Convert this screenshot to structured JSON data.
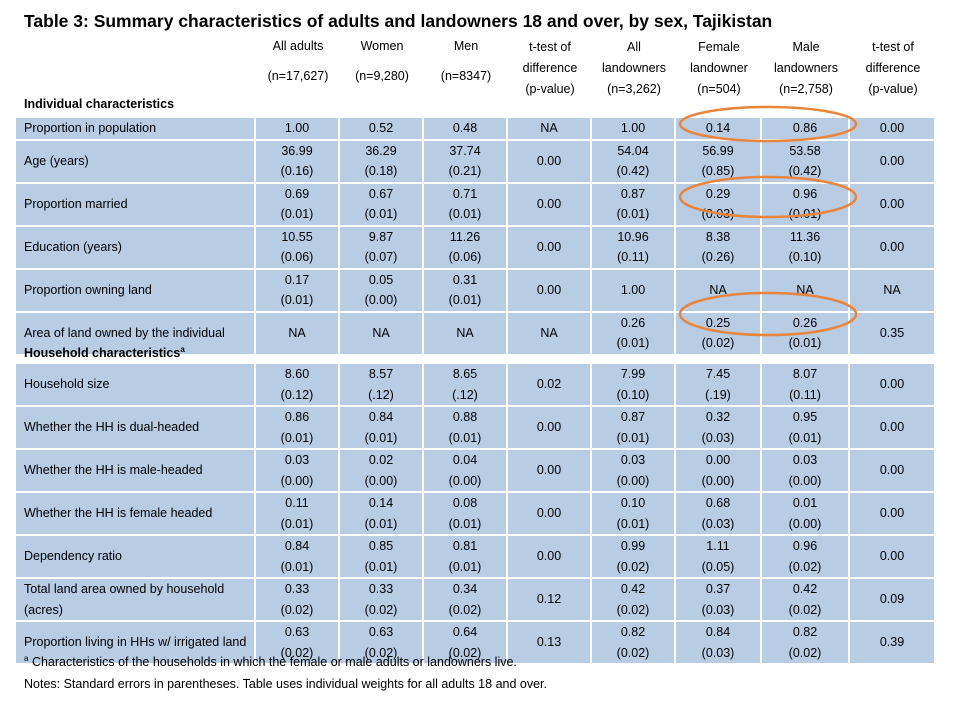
{
  "title": "Table 3:  Summary characteristics of adults and landowners 18 and over, by sex, Tajikistan",
  "columns": [
    {
      "lines": [
        "All adults",
        "(n=17,627)"
      ]
    },
    {
      "lines": [
        "Women",
        "(n=9,280)"
      ]
    },
    {
      "lines": [
        "Men",
        "(n=8347)"
      ]
    },
    {
      "lines": [
        "t-test of",
        "difference",
        "(p-value)"
      ]
    },
    {
      "lines": [
        "All",
        "landowners",
        "(n=3,262)"
      ]
    },
    {
      "lines": [
        "Female",
        "landowner",
        "(n=504)"
      ]
    },
    {
      "lines": [
        "Male",
        "landowners",
        "(n=2,758)"
      ]
    },
    {
      "lines": [
        "t-test of",
        "difference",
        "(p-value)"
      ]
    }
  ],
  "sections": {
    "individual": "Individual characteristics",
    "household": "Household characteristics",
    "household_sup": "a"
  },
  "individual_rows": [
    {
      "label": "Proportion in population",
      "cells": [
        [
          "1.00"
        ],
        [
          "0.52"
        ],
        [
          "0.48"
        ],
        [
          "NA"
        ],
        [
          "1.00"
        ],
        [
          "0.14"
        ],
        [
          "0.86"
        ],
        [
          "0.00"
        ]
      ]
    },
    {
      "label": "Age (years)",
      "cells": [
        [
          "36.99",
          "(0.16)"
        ],
        [
          "36.29",
          "(0.18)"
        ],
        [
          "37.74",
          "(0.21)"
        ],
        [
          "0.00"
        ],
        [
          "54.04",
          "(0.42)"
        ],
        [
          "56.99",
          "(0.85)"
        ],
        [
          "53.58",
          "(0.42)"
        ],
        [
          "0.00"
        ]
      ]
    },
    {
      "label": "Proportion married",
      "cells": [
        [
          "0.69",
          "(0.01)"
        ],
        [
          "0.67",
          "(0.01)"
        ],
        [
          "0.71",
          "(0.01)"
        ],
        [
          "0.00"
        ],
        [
          "0.87",
          "(0.01)"
        ],
        [
          "0.29",
          "(0.03)"
        ],
        [
          "0.96",
          "(0.01)"
        ],
        [
          "0.00"
        ]
      ]
    },
    {
      "label": "Education (years)",
      "cells": [
        [
          "10.55",
          "(0.06)"
        ],
        [
          "9.87",
          "(0.07)"
        ],
        [
          "11.26",
          "(0.06)"
        ],
        [
          "0.00"
        ],
        [
          "10.96",
          "(0.11)"
        ],
        [
          "8.38",
          "(0.26)"
        ],
        [
          "11.36",
          "(0.10)"
        ],
        [
          "0.00"
        ]
      ]
    },
    {
      "label": "Proportion owning land",
      "cells": [
        [
          "0.17",
          "(0.01)"
        ],
        [
          "0.05",
          "(0.00)"
        ],
        [
          "0.31",
          "(0.01)"
        ],
        [
          "0.00"
        ],
        [
          "1.00"
        ],
        [
          "NA"
        ],
        [
          "NA"
        ],
        [
          "NA"
        ]
      ]
    },
    {
      "label": "Area of land owned by the individual",
      "cells": [
        [
          "NA"
        ],
        [
          "NA"
        ],
        [
          "NA"
        ],
        [
          "NA"
        ],
        [
          "0.26",
          "(0.01)"
        ],
        [
          "0.25",
          "(0.02)"
        ],
        [
          "0.26",
          "(0.01)"
        ],
        [
          "0.35"
        ]
      ]
    }
  ],
  "household_rows": [
    {
      "label": "Household size",
      "cells": [
        [
          "8.60",
          "(0.12)"
        ],
        [
          "8.57",
          "(.12)"
        ],
        [
          "8.65",
          "(.12)"
        ],
        [
          "0.02"
        ],
        [
          "7.99",
          "(0.10)"
        ],
        [
          "7.45",
          "(.19)"
        ],
        [
          "8.07",
          "(0.11)"
        ],
        [
          "0.00"
        ]
      ]
    },
    {
      "label": "Whether the HH is dual-headed",
      "cells": [
        [
          "0.86",
          "(0.01)"
        ],
        [
          "0.84",
          "(0.01)"
        ],
        [
          "0.88",
          "(0.01)"
        ],
        [
          "0.00"
        ],
        [
          "0.87",
          "(0.01)"
        ],
        [
          "0.32",
          "(0.03)"
        ],
        [
          "0.95",
          "(0.01)"
        ],
        [
          "0.00"
        ]
      ]
    },
    {
      "label": "Whether the HH is male-headed",
      "cells": [
        [
          "0.03",
          "(0.00)"
        ],
        [
          "0.02",
          "(0.00)"
        ],
        [
          "0.04",
          "(0.00)"
        ],
        [
          "0.00"
        ],
        [
          "0.03",
          "(0.00)"
        ],
        [
          "0.00",
          "(0.00)"
        ],
        [
          "0.03",
          "(0.00)"
        ],
        [
          "0.00"
        ]
      ]
    },
    {
      "label": "Whether the HH is female headed",
      "cells": [
        [
          "0.11",
          "(0.01)"
        ],
        [
          "0.14",
          "(0.01)"
        ],
        [
          "0.08",
          "(0.01)"
        ],
        [
          "0.00"
        ],
        [
          "0.10",
          "(0.01)"
        ],
        [
          "0.68",
          "(0.03)"
        ],
        [
          "0.01",
          "(0.00)"
        ],
        [
          "0.00"
        ]
      ]
    },
    {
      "label": "Dependency ratio",
      "cells": [
        [
          "0.84",
          "(0.01)"
        ],
        [
          "0.85",
          "(0.01)"
        ],
        [
          "0.81",
          "(0.01)"
        ],
        [
          "0.00"
        ],
        [
          "0.99",
          "(0.02)"
        ],
        [
          "1.11",
          "(0.05)"
        ],
        [
          "0.96",
          "(0.02)"
        ],
        [
          "0.00"
        ]
      ]
    },
    {
      "label": "Total land area owned by household  (acres)",
      "cells": [
        [
          "0.33",
          "(0.02)"
        ],
        [
          "0.33",
          "(0.02)"
        ],
        [
          "0.34",
          "(0.02)"
        ],
        [
          "0.12"
        ],
        [
          "0.42",
          "(0.02)"
        ],
        [
          "0.37",
          "(0.03)"
        ],
        [
          "0.42",
          "(0.02)"
        ],
        [
          "0.09"
        ]
      ]
    },
    {
      "label": "Proportion living in HHs w/ irrigated land",
      "cells": [
        [
          "0.63",
          "(0.02)"
        ],
        [
          "0.63",
          "(0.02)"
        ],
        [
          "0.64",
          "(0.02)"
        ],
        [
          "0.13"
        ],
        [
          "0.82",
          "(0.02)"
        ],
        [
          "0.84",
          "(0.03)"
        ],
        [
          "0.82",
          "(0.02)"
        ],
        [
          "0.39"
        ]
      ]
    }
  ],
  "footnote_sup": "a",
  "footnote": "Characteristics of the households in which the female or male adults or landowners live.",
  "notes": "Notes: Standard errors in parentheses. Table uses individual weights for all adults 18 and over.",
  "highlight_color": "#e8853c"
}
